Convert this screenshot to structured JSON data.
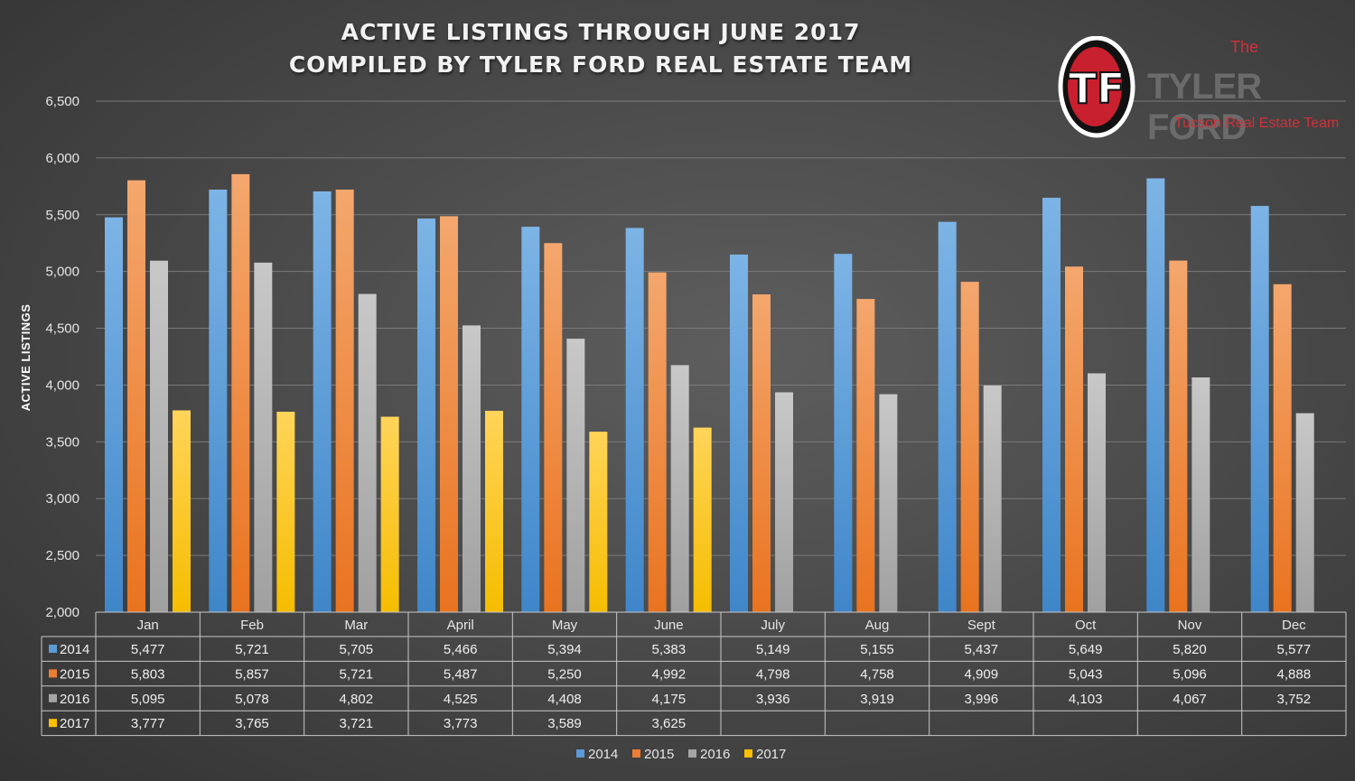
{
  "chart_data": {
    "type": "bar",
    "title": "ACTIVE LISTINGS THROUGH JUNE 2017",
    "subtitle": "COMPILED BY TYLER FORD REAL ESTATE TEAM",
    "xlabel": "",
    "ylabel": "ACTIVE LISTINGS",
    "ylim": [
      2000,
      6500
    ],
    "yticks": [
      "2,000",
      "2,500",
      "3,000",
      "3,500",
      "4,000",
      "4,500",
      "5,000",
      "5,500",
      "6,000",
      "6,500"
    ],
    "grid": true,
    "legend_position": "bottom",
    "categories": [
      "Jan",
      "Feb",
      "Mar",
      "April",
      "May",
      "June",
      "July",
      "Aug",
      "Sept",
      "Oct",
      "Nov",
      "Dec"
    ],
    "series": [
      {
        "name": "2014",
        "color": "#5b9bd5",
        "values": [
          5477,
          5721,
          5705,
          5466,
          5394,
          5383,
          5149,
          5155,
          5437,
          5649,
          5820,
          5577
        ],
        "labels": [
          "5,477",
          "5,721",
          "5,705",
          "5,466",
          "5,394",
          "5,383",
          "5,149",
          "5,155",
          "5,437",
          "5,649",
          "5,820",
          "5,577"
        ]
      },
      {
        "name": "2015",
        "color": "#ed7d31",
        "values": [
          5803,
          5857,
          5721,
          5487,
          5250,
          4992,
          4798,
          4758,
          4909,
          5043,
          5096,
          4888
        ],
        "labels": [
          "5,803",
          "5,857",
          "5,721",
          "5,487",
          "5,250",
          "4,992",
          "4,798",
          "4,758",
          "4,909",
          "5,043",
          "5,096",
          "4,888"
        ]
      },
      {
        "name": "2016",
        "color": "#a5a5a5",
        "values": [
          5095,
          5078,
          4802,
          4525,
          4408,
          4175,
          3936,
          3919,
          3996,
          4103,
          4067,
          3752
        ],
        "labels": [
          "5,095",
          "5,078",
          "4,802",
          "4,525",
          "4,408",
          "4,175",
          "3,936",
          "3,919",
          "3,996",
          "4,103",
          "4,067",
          "3,752"
        ]
      },
      {
        "name": "2017",
        "color": "#ffc000",
        "values": [
          3777,
          3765,
          3721,
          3773,
          3589,
          3625,
          null,
          null,
          null,
          null,
          null,
          null
        ],
        "labels": [
          "3,777",
          "3,765",
          "3,721",
          "3,773",
          "3,589",
          "3,625",
          "",
          "",
          "",
          "",
          "",
          ""
        ]
      }
    ]
  },
  "logo": {
    "monogram": "TF",
    "the": "The",
    "name": "TYLER FORD",
    "tagline": "Tucson Real Estate Team"
  }
}
